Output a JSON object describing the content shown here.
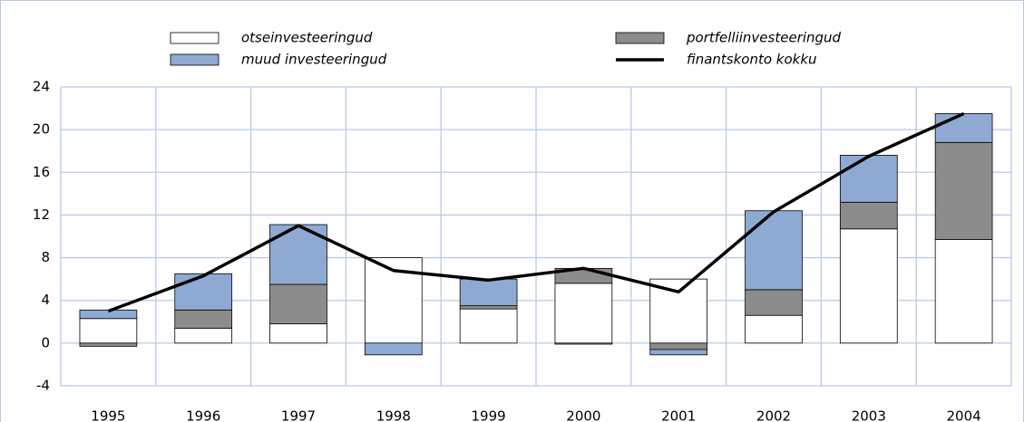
{
  "chart_data": {
    "type": "bar",
    "stacked": true,
    "categories": [
      "1995",
      "1996",
      "1997",
      "1998",
      "1999",
      "2000",
      "2001",
      "2002",
      "2003",
      "2004"
    ],
    "series": [
      {
        "name": "otseinvesteeringud",
        "color": "#ffffff",
        "values": [
          2.3,
          1.4,
          1.8,
          8.0,
          3.2,
          5.6,
          6.0,
          2.6,
          10.7,
          9.7
        ]
      },
      {
        "name": "portfelliinvesteeringud",
        "color": "#8c8c8c",
        "values": [
          -0.3,
          1.7,
          3.7,
          0,
          0.3,
          1.4,
          -0.6,
          2.4,
          2.5,
          9.1
        ]
      },
      {
        "name": "muud investeeringud",
        "color": "#8eaad3",
        "values": [
          0.8,
          3.4,
          5.6,
          -1.1,
          2.5,
          -0.1,
          -0.5,
          7.4,
          4.4,
          2.7
        ]
      },
      {
        "name": "finantskonto kokku",
        "type": "line",
        "color": "#000000",
        "values": [
          3.0,
          6.3,
          11.0,
          6.8,
          5.9,
          7.0,
          4.8,
          12.3,
          17.5,
          21.5
        ]
      }
    ],
    "ylim": [
      -4,
      24
    ],
    "yticks": [
      -4,
      0,
      4,
      8,
      12,
      16,
      20,
      24
    ],
    "grid": true
  }
}
